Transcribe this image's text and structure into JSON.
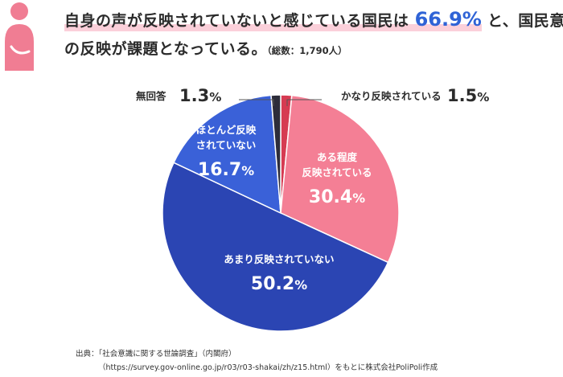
{
  "header": {
    "line1_pre": "自身の声が反映されていないと感じている国民は",
    "line1_highlight": "66.9%",
    "line1_post": "と、国民意見",
    "line2": "の反映が課題となっている。",
    "line2_note": "（総数：1,790人）"
  },
  "chart_data": {
    "type": "pie",
    "title": "",
    "start": "top",
    "direction": "clockwise",
    "slices": [
      {
        "label": "かなり反映されている",
        "value": 1.5,
        "display": "1.5%",
        "color": "#d63b52",
        "label_position": "outside"
      },
      {
        "label": "ある程度反映されている",
        "value": 30.4,
        "display": "30.4%",
        "color": "#f47f95",
        "label_position": "inside"
      },
      {
        "label": "あまり反映されていない",
        "value": 50.2,
        "display": "50.2%",
        "color": "#2b45b3",
        "label_position": "inside"
      },
      {
        "label": "ほとんど反映されていない",
        "value": 16.7,
        "display": "16.7%",
        "color": "#3a61d8",
        "label_position": "inside"
      },
      {
        "label": "無回答",
        "value": 1.3,
        "display": "1.3%",
        "color": "#2d2d3a",
        "label_position": "outside"
      }
    ]
  },
  "slice_texts": {
    "s0": {
      "lines": [
        "かなり反映されている"
      ],
      "value": "1.5",
      "unit": "%"
    },
    "s1": {
      "lines": [
        "ある程度",
        "反映されている"
      ],
      "value": "30.4",
      "unit": "%"
    },
    "s2": {
      "lines": [
        "あまり反映されていない"
      ],
      "value": "50.2",
      "unit": "%"
    },
    "s3": {
      "lines": [
        "ほとんど反映",
        "されていない"
      ],
      "value": "16.7",
      "unit": "%"
    },
    "s4": {
      "lines": [
        "無回答"
      ],
      "value": "1.3",
      "unit": "%"
    }
  },
  "source": {
    "line1": "出典：「社会意識に関する世論調査」（内閣府）",
    "line2": "（https://survey.gov-online.go.jp/r03/r03-shakai/zh/z15.html）をもとに株式会社PoliPoli作成"
  },
  "icon": {
    "name": "person-icon",
    "color": "#f07d93"
  }
}
